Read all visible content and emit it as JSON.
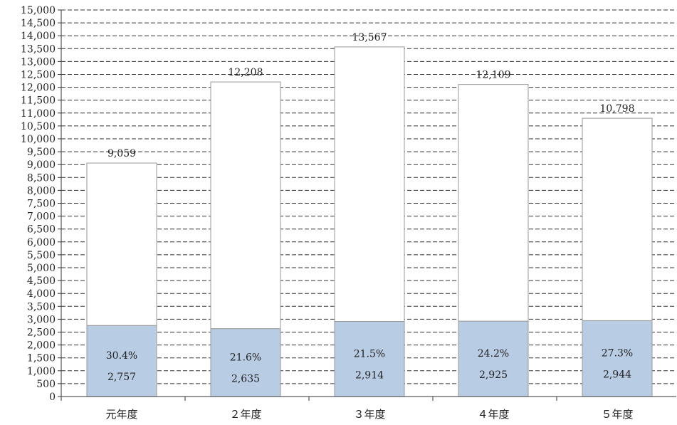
{
  "chart_data": {
    "type": "bar",
    "stacked": true,
    "categories": [
      "元年度",
      "２年度",
      "３年度",
      "４年度",
      "５年度"
    ],
    "series": [
      {
        "values": [
          2757,
          2635,
          2914,
          2925,
          2944
        ],
        "color": "#b8cce4"
      },
      {
        "values": [
          6302,
          9573,
          10653,
          9184,
          7854
        ],
        "color": "#ffffff"
      }
    ],
    "totals": [
      9059,
      12208,
      13567,
      12109,
      10798
    ],
    "total_labels": [
      "9,059",
      "12,208",
      "13,567",
      "12,109",
      "10,798"
    ],
    "value_labels": [
      "2,757",
      "2,635",
      "2,914",
      "2,925",
      "2,944"
    ],
    "percent_labels": [
      "30.4%",
      "21.6%",
      "21.5%",
      "24.2%",
      "27.3%"
    ],
    "ylim": [
      0,
      15000
    ],
    "ytick_step": 500,
    "ytick_labels": [
      "0",
      "500",
      "1,000",
      "1,500",
      "2,000",
      "2,500",
      "3,000",
      "3,500",
      "4,000",
      "4,500",
      "5,000",
      "5,500",
      "6,000",
      "6,500",
      "7,000",
      "7,500",
      "8,000",
      "8,500",
      "9,000",
      "9,500",
      "10,000",
      "10,500",
      "11,000",
      "11,500",
      "12,000",
      "12,500",
      "13,000",
      "13,500",
      "14,000",
      "14,500",
      "15,000"
    ],
    "grid": "dashed horizontal",
    "legend": "none",
    "title": "",
    "xlabel": "",
    "ylabel": ""
  }
}
